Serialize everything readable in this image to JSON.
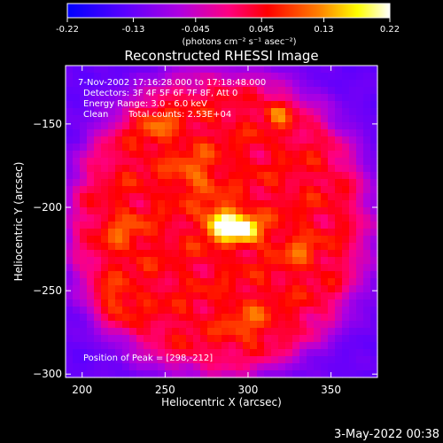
{
  "colorbar": {
    "ticks": [
      "-0.22",
      "-0.13",
      "-0.045",
      "0.045",
      "0.13",
      "0.22"
    ],
    "tick_values": [
      -0.22,
      -0.13,
      -0.045,
      0.045,
      0.13,
      0.22
    ],
    "range": [
      -0.22,
      0.22
    ],
    "units": "(photons cm⁻² s⁻¹ asec⁻²)",
    "colors": [
      "#0000ff",
      "#6000ff",
      "#c000ff",
      "#ff00c0",
      "#ff0000",
      "#ff8000",
      "#ffff00",
      "#ffffff"
    ]
  },
  "title": "Reconstructed RHESSI Image",
  "info": {
    "time": "7-Nov-2002 17:16:28.000 to 17:18:48.000",
    "detectors": "Detectors: 3F 4F 5F 6F 7F 8F, Att 0",
    "energy": "Energy Range: 3.0 - 6.0 keV",
    "method": "Clean",
    "counts": "Total counts: 2.53E+04",
    "peak": "Position of Peak = [298,-212]"
  },
  "footer_date": "3-May-2022 00:38",
  "chart_data": {
    "type": "heatmap",
    "title": "Reconstructed RHESSI Image",
    "xlabel": "Heliocentric X (arcsec)",
    "ylabel": "Heliocentric Y (arcsec)",
    "xlim": [
      190,
      378
    ],
    "ylim": [
      -302,
      -115
    ],
    "xticks": [
      200,
      250,
      300,
      350
    ],
    "yticks": [
      -150,
      -200,
      -250,
      -300
    ],
    "xtick_labels": [
      "200",
      "250",
      "300",
      "350"
    ],
    "ytick_labels": [
      "−150",
      "−200",
      "−250",
      "−300"
    ],
    "colorscale_range": [
      -0.22,
      0.22
    ],
    "peak": {
      "x": 298,
      "y": -212,
      "value": 0.22
    },
    "features": [
      {
        "x": 285,
        "y": -210,
        "value": 0.2,
        "sigma": 7
      },
      {
        "x": 300,
        "y": -213,
        "value": 0.16,
        "sigma": 6
      },
      {
        "x": 318,
        "y": -143,
        "value": 0.09,
        "sigma": 5
      },
      {
        "x": 218,
        "y": -258,
        "value": 0.07,
        "sigma": 9
      },
      {
        "x": 268,
        "y": -180,
        "value": 0.06,
        "sigma": 10
      },
      {
        "x": 330,
        "y": -225,
        "value": 0.05,
        "sigma": 8
      },
      {
        "x": 245,
        "y": -150,
        "value": 0.06,
        "sigma": 9
      },
      {
        "x": 300,
        "y": -270,
        "value": 0.05,
        "sigma": 10
      },
      {
        "x": 225,
        "y": -215,
        "value": 0.05,
        "sigma": 9
      }
    ],
    "disk": {
      "center_x": 283,
      "center_y": -210,
      "radius": 90,
      "inside_value": 0.045,
      "outside_value": -0.13
    }
  }
}
